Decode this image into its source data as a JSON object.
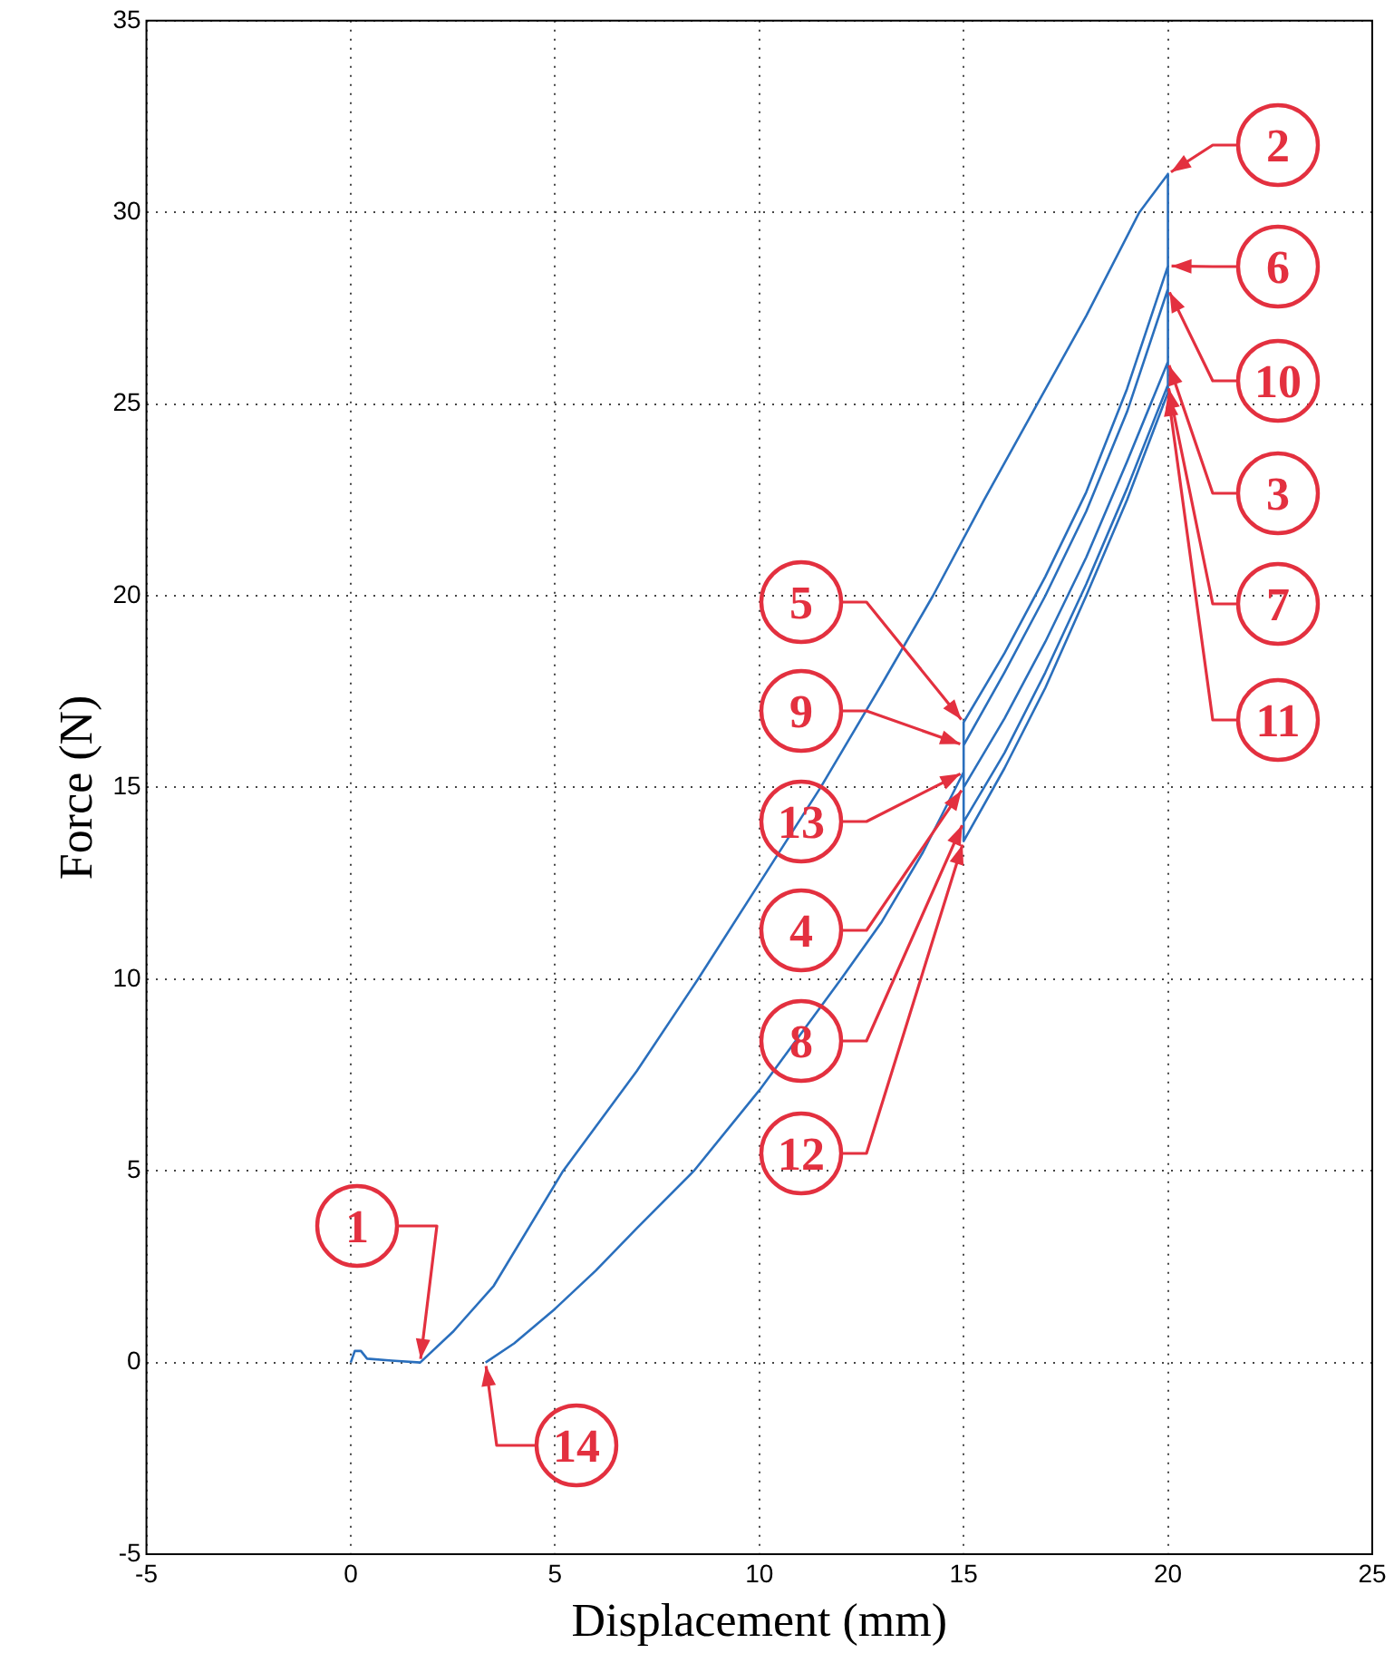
{
  "chart_data": {
    "type": "line",
    "xlabel": "Displacement (mm)",
    "ylabel": "Force (N)",
    "xlim": [
      -5,
      25
    ],
    "xticks": [
      -5,
      0,
      5,
      10,
      15,
      20,
      25
    ],
    "ylim": [
      -5,
      35
    ],
    "yticks": [
      -5,
      0,
      5,
      10,
      15,
      20,
      25,
      30,
      35
    ],
    "grid": true,
    "marker": "none",
    "line_style": "solid",
    "series": [
      {
        "color": "#2a6fbd",
        "x": [
          0,
          0.1,
          0.25,
          0.4,
          1,
          1.7,
          2.5,
          3.5,
          5.2,
          7,
          8.5,
          10,
          11.5,
          13,
          14.25,
          15.5,
          16.8,
          18,
          19.3,
          20,
          20,
          19,
          18,
          17,
          16,
          15,
          15,
          16,
          17,
          18,
          19,
          20,
          20,
          19,
          18,
          17,
          16,
          15,
          15,
          16,
          17,
          18,
          19,
          20,
          20,
          19,
          18,
          17,
          16,
          15,
          15,
          14,
          13,
          12,
          10,
          8.4,
          7,
          6,
          5,
          4,
          3.3
        ],
        "values": [
          0,
          0.3,
          0.3,
          0.1,
          0.05,
          0,
          0.8,
          2,
          5,
          7.6,
          10,
          12.5,
          15,
          17.7,
          20,
          22.5,
          25,
          27.3,
          30,
          31,
          26.1,
          23.5,
          21,
          18.8,
          16.8,
          15,
          16.7,
          18.5,
          20.5,
          22.7,
          25.4,
          28.6,
          25.5,
          22.8,
          20.3,
          18,
          15.9,
          14.1,
          16.1,
          18,
          20,
          22.2,
          24.8,
          28,
          25.3,
          22.5,
          20,
          17.6,
          15.5,
          13.6,
          15.4,
          13.3,
          11.5,
          10,
          7.1,
          5,
          3.5,
          2.4,
          1.4,
          0.5,
          0
        ]
      }
    ],
    "annotations": [
      {
        "text": "1",
        "x": 1.7,
        "y": 0
      },
      {
        "text": "2",
        "x": 20,
        "y": 31
      },
      {
        "text": "3",
        "x": 20,
        "y": 26.1
      },
      {
        "text": "4",
        "x": 15,
        "y": 15
      },
      {
        "text": "5",
        "x": 15,
        "y": 16.7
      },
      {
        "text": "6",
        "x": 20,
        "y": 28.6
      },
      {
        "text": "7",
        "x": 20,
        "y": 25.5
      },
      {
        "text": "8",
        "x": 15,
        "y": 14.1
      },
      {
        "text": "9",
        "x": 15,
        "y": 16.1
      },
      {
        "text": "10",
        "x": 20,
        "y": 28
      },
      {
        "text": "11",
        "x": 20,
        "y": 25.3
      },
      {
        "text": "12",
        "x": 15,
        "y": 13.6
      },
      {
        "text": "13",
        "x": 15,
        "y": 15.4
      },
      {
        "text": "14",
        "x": 3.3,
        "y": 0
      }
    ]
  }
}
